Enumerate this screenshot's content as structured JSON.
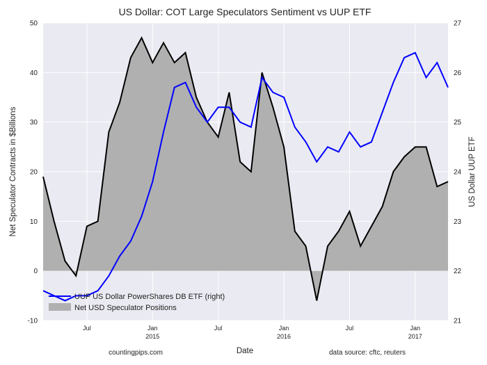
{
  "chart_data": {
    "type": "line",
    "title": "US Dollar: COT Large Speculators Sentiment vs UUP ETF",
    "xlabel": "Date",
    "ylabel_left": "Net Speculator Contracts in $Billions",
    "ylabel_right": "US Dollar UUP ETF",
    "ylim_left": [
      -10,
      50
    ],
    "ylim_right": [
      21,
      27
    ],
    "yticks_left": [
      -10,
      0,
      10,
      20,
      30,
      40,
      50
    ],
    "yticks_right": [
      21,
      22,
      23,
      24,
      25,
      26,
      27
    ],
    "x_range": [
      "2014-03",
      "2017-04"
    ],
    "x_ticks": [
      {
        "date": "2014-07",
        "line1": "Jul",
        "line2": ""
      },
      {
        "date": "2015-01",
        "line1": "Jan",
        "line2": "2015"
      },
      {
        "date": "2015-07",
        "line1": "Jul",
        "line2": ""
      },
      {
        "date": "2016-01",
        "line1": "Jan",
        "line2": "2016"
      },
      {
        "date": "2016-07",
        "line1": "Jul",
        "line2": ""
      },
      {
        "date": "2017-01",
        "line1": "Jan",
        "line2": "2017"
      }
    ],
    "grid": true,
    "legend_position": "bottom-left",
    "colors": {
      "uup": "#0000ff",
      "net": "#000000",
      "fill": "#b0b0b0",
      "plot_bg": "#eaeaf2",
      "grid": "#ffffff"
    },
    "series": [
      {
        "name": "UUP US Dollar PowerShares DB ETF (right)",
        "axis": "right",
        "style": "line",
        "x": [
          "2014-03",
          "2014-04",
          "2014-05",
          "2014-06",
          "2014-07",
          "2014-08",
          "2014-09",
          "2014-10",
          "2014-11",
          "2014-12",
          "2015-01",
          "2015-02",
          "2015-03",
          "2015-04",
          "2015-05",
          "2015-06",
          "2015-07",
          "2015-08",
          "2015-09",
          "2015-10",
          "2015-11",
          "2015-12",
          "2016-01",
          "2016-02",
          "2016-03",
          "2016-04",
          "2016-05",
          "2016-06",
          "2016-07",
          "2016-08",
          "2016-09",
          "2016-10",
          "2016-11",
          "2016-12",
          "2017-01",
          "2017-02",
          "2017-03",
          "2017-04"
        ],
        "y": [
          21.6,
          21.5,
          21.4,
          21.5,
          21.5,
          21.6,
          21.9,
          22.3,
          22.6,
          23.1,
          23.8,
          24.8,
          25.7,
          25.8,
          25.3,
          25.0,
          25.3,
          25.3,
          25.0,
          24.9,
          25.9,
          25.6,
          25.5,
          24.9,
          24.6,
          24.2,
          24.5,
          24.4,
          24.8,
          24.5,
          24.6,
          25.2,
          25.8,
          26.3,
          26.4,
          25.9,
          26.2,
          25.7
        ]
      },
      {
        "name": "Net USD Speculator Positions",
        "axis": "left",
        "style": "area",
        "x": [
          "2014-03",
          "2014-04",
          "2014-05",
          "2014-06",
          "2014-07",
          "2014-08",
          "2014-09",
          "2014-10",
          "2014-11",
          "2014-12",
          "2015-01",
          "2015-02",
          "2015-03",
          "2015-04",
          "2015-05",
          "2015-06",
          "2015-07",
          "2015-08",
          "2015-09",
          "2015-10",
          "2015-11",
          "2015-12",
          "2016-01",
          "2016-02",
          "2016-03",
          "2016-04",
          "2016-05",
          "2016-06",
          "2016-07",
          "2016-08",
          "2016-09",
          "2016-10",
          "2016-11",
          "2016-12",
          "2017-01",
          "2017-02",
          "2017-03",
          "2017-04"
        ],
        "y": [
          19,
          10,
          2,
          -1,
          9,
          10,
          28,
          34,
          43,
          47,
          42,
          46,
          42,
          44,
          35,
          30,
          27,
          36,
          22,
          20,
          40,
          33,
          25,
          8,
          5,
          -6,
          5,
          8,
          12,
          5,
          9,
          13,
          20,
          23,
          25,
          25,
          17,
          18
        ]
      }
    ],
    "footer_left": "countingpips.com",
    "footer_right": "data source: cftc, reuters"
  }
}
